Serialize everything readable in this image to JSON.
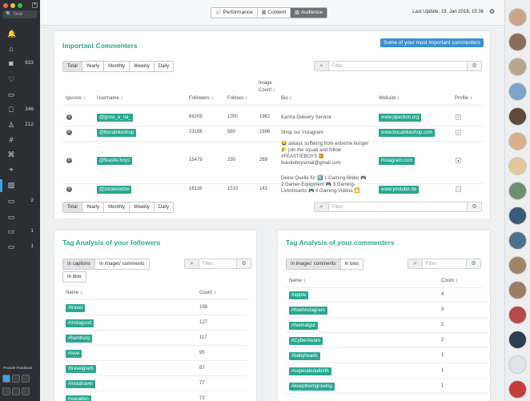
{
  "sidebar": {
    "search_placeholder": "Sear",
    "items": [
      {
        "icon": "bell-icon",
        "glyph": "🔔",
        "count": ""
      },
      {
        "icon": "home-icon",
        "glyph": "⌂",
        "count": ""
      },
      {
        "icon": "camera-icon",
        "glyph": "◙",
        "count": "933"
      },
      {
        "icon": "heart-icon",
        "glyph": "♡",
        "count": ""
      },
      {
        "icon": "comment-icon",
        "glyph": "▭",
        "count": ""
      },
      {
        "icon": "bookmark-icon",
        "glyph": "⎕",
        "count": "346"
      },
      {
        "icon": "user-icon",
        "glyph": "♙",
        "count": "212"
      },
      {
        "icon": "hashtag-icon",
        "glyph": "#",
        "count": ""
      },
      {
        "icon": "tag-icon",
        "glyph": "⌘",
        "count": ""
      },
      {
        "icon": "location-icon",
        "glyph": "⌖",
        "count": ""
      },
      {
        "icon": "chart-icon",
        "glyph": "▨",
        "count": ""
      },
      {
        "icon": "folder-icon",
        "glyph": "▭",
        "count": "2"
      },
      {
        "icon": "folder-icon",
        "glyph": "▭",
        "count": ""
      },
      {
        "icon": "folder-icon",
        "glyph": "▭",
        "count": "1"
      },
      {
        "icon": "folder-icon",
        "glyph": "▭",
        "count": "1"
      }
    ],
    "feedback_label": "Provide Feedback"
  },
  "topbar": {
    "tabs": [
      {
        "label": "Performance",
        "glyph": "📈",
        "active": false
      },
      {
        "label": "Content",
        "glyph": "▥",
        "active": false
      },
      {
        "label": "Audience",
        "glyph": "▧",
        "active": true
      }
    ],
    "last_update": "Last Update: 19. Jan 2018, 15:36"
  },
  "commenters": {
    "title": "Important Commenters",
    "info_button": "Some of your most important commenters",
    "periods": [
      "Total",
      "Yearly",
      "Monthly",
      "Weekly",
      "Daily"
    ],
    "filter_placeholder": "Filter",
    "columns": {
      "igscore": "Igscore",
      "username": "Username",
      "followers": "Followers",
      "follows": "Follows",
      "image_count": "Image Count",
      "bio": "Bio",
      "website": "Website",
      "profile": "Profile"
    },
    "rows": [
      {
        "score": "1",
        "username": "@gone_a_rai_",
        "followers": "64209",
        "follows": "1050",
        "images": "1982",
        "bio": "Karma Delivery Service",
        "website": "www.ppaction.org",
        "profile": "≡"
      },
      {
        "score": "0",
        "username": "@bocabikeshop",
        "followers": "23166",
        "follows": "980",
        "images": "1696",
        "bio": "Shop our Instagram",
        "website": "www.bocabikeshop.com",
        "profile": "▪"
      },
      {
        "score": "0",
        "username": "@feastie.boys",
        "followers": "15479",
        "follows": "230",
        "images": "269",
        "bio": "😂 always suffering from extreme hunger 🌮 join the squad and follow #FEASTIEBOYS 🍔 feastieboysmail@gmail.com",
        "website": "instagram.com",
        "profile": "●"
      },
      {
        "score": "0",
        "username": "@zockerwitze",
        "followers": "16116",
        "follows": "1510",
        "images": "141",
        "bio": "Deine Quelle für 1️⃣ 1.Gaming-Bilder 🎮 2.Gamer-Equipment 🎮 3.Gaming-Livestreams 🎮 4.Gaming-Videos 🎦",
        "website": "www.youtube.de",
        "profile": "□"
      }
    ]
  },
  "followers_tags": {
    "title": "Tag Analysis of your followers",
    "options": [
      "In captions",
      "In images' comments",
      "In bios"
    ],
    "filter_placeholder": "Filter",
    "col_name": "Name",
    "col_count": "Count",
    "rows": [
      {
        "name": "#travel",
        "count": "198"
      },
      {
        "name": "#instagood",
        "count": "127"
      },
      {
        "name": "#hamburg",
        "count": "117"
      },
      {
        "name": "#love",
        "count": "95"
      },
      {
        "name": "#travelgram",
        "count": "87"
      },
      {
        "name": "#instatravel",
        "count": "77"
      },
      {
        "name": "#vacation",
        "count": "73"
      }
    ]
  },
  "commenters_tags": {
    "title": "Tag Analysis of your commenters",
    "options": [
      "In images' comments",
      "In bios"
    ],
    "filter_placeholder": "Filter",
    "col_name": "Name",
    "col_count": "Count",
    "rows": [
      {
        "name": "#apple",
        "count": "4"
      },
      {
        "name": "#hoehnstagram",
        "count": "3"
      },
      {
        "name": "#heimatgut",
        "count": "2"
      },
      {
        "name": "#CyberAware",
        "count": "2"
      },
      {
        "name": "#babyheads",
        "count": "1"
      },
      {
        "name": "#seperatedatbirth",
        "count": "1"
      },
      {
        "name": "#keepthemgrowing",
        "count": "1"
      }
    ]
  },
  "colors": {
    "accent": "#2aa890",
    "info": "#3b8fd0",
    "sidebar": "#2b2f34"
  }
}
